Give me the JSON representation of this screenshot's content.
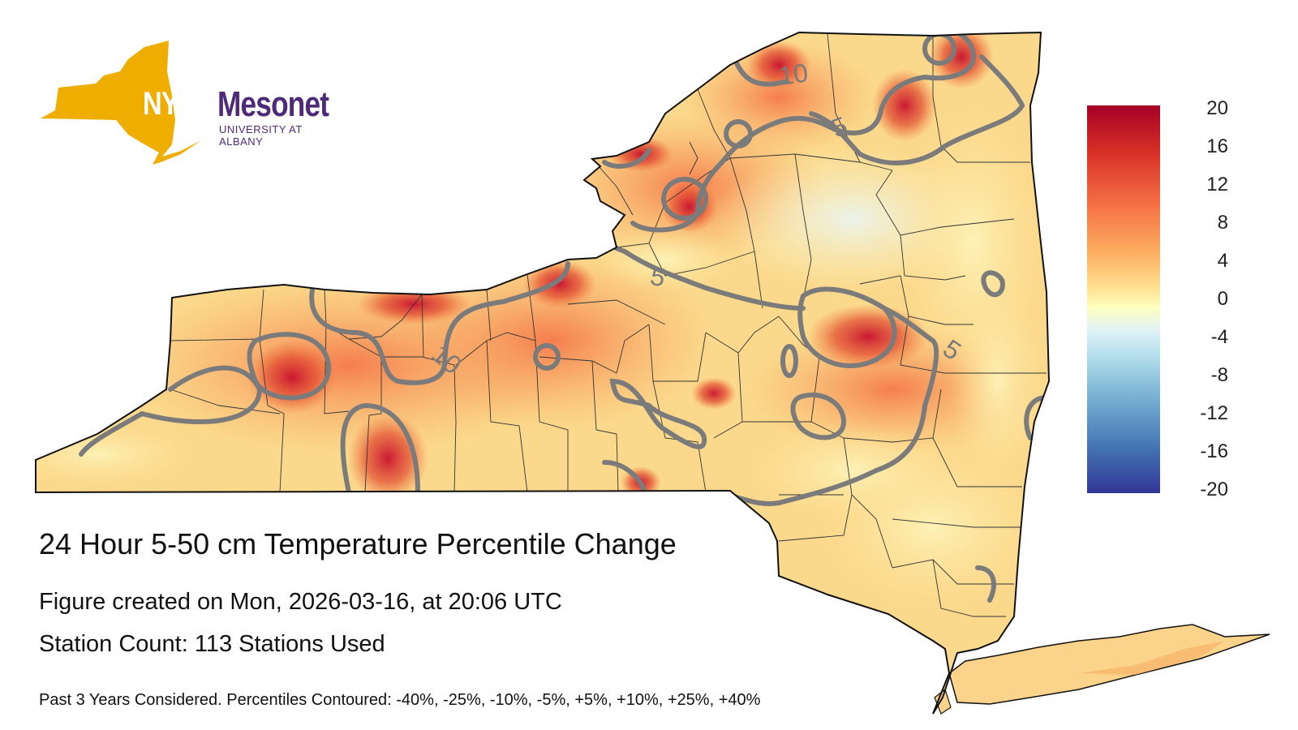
{
  "logo": {
    "short": "NYS",
    "name": "Mesonet",
    "subtitle": "UNIVERSITY AT ALBANY",
    "state_color": "#efad00",
    "name_color": "#4e2a78"
  },
  "figure": {
    "title": "24 Hour 5-50 cm Temperature Percentile Change",
    "created": "Figure created on Mon, 2026-03-16, at 20:06 UTC",
    "station_count": "Station Count: 113 Stations Used",
    "footnote": "Past 3 Years Considered. Percentiles Contoured: -40%, -25%, -10%, -5%, +5%, +10%, +25%, +40%"
  },
  "legend": {
    "ticks": [
      "20",
      "16",
      "12",
      "8",
      "4",
      "0",
      "-4",
      "-8",
      "-12",
      "-16",
      "-20"
    ],
    "colors": [
      "#a50026",
      "#d73027",
      "#f46d43",
      "#fdae61",
      "#fee090",
      "#ffffbf",
      "#e0f3f8",
      "#abd9e9",
      "#74add1",
      "#4575b4",
      "#313695"
    ]
  },
  "contour_labels": [
    "10",
    "5",
    "5",
    "10",
    "5"
  ]
}
